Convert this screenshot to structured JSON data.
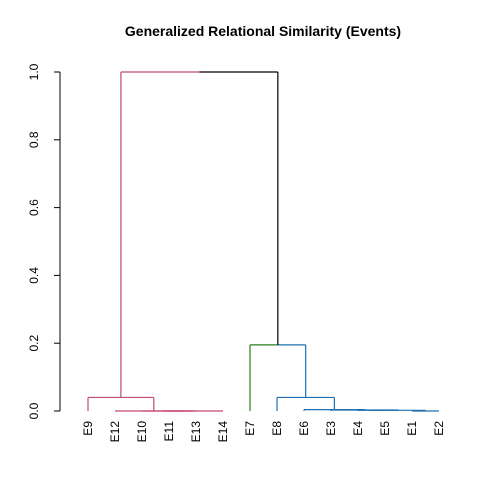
{
  "chart_data": {
    "type": "dendrogram",
    "title": "Generalized Relational Similarity (Events)",
    "xlabel": "",
    "ylabel": "",
    "ylim": [
      0,
      1
    ],
    "yticks": [
      "0.0",
      "0.2",
      "0.4",
      "0.6",
      "0.8",
      "1.0"
    ],
    "ytick_values": [
      0,
      0.2,
      0.4,
      0.6,
      0.8,
      1.0
    ],
    "leaves": [
      "E9",
      "E12",
      "E10",
      "E11",
      "E13",
      "E14",
      "E7",
      "E8",
      "E6",
      "E3",
      "E4",
      "E5",
      "E1",
      "E2"
    ],
    "colors": {
      "cluster1": "#c2477a",
      "cluster2": "#2e7d1f",
      "cluster3": "#1f6fb0",
      "root": "#000000"
    },
    "merges": [
      {
        "a": "E11",
        "b": "E13",
        "height": 0.0,
        "color": "cluster1"
      },
      {
        "a": "E10",
        "b": "E11+E13",
        "height": 0.0,
        "color": "cluster1"
      },
      {
        "a": "E10+E11+E13",
        "b": "E14",
        "height": 0.0,
        "color": "cluster1"
      },
      {
        "a": "E12",
        "b": "E10+E11+E13+E14",
        "height": 0.0,
        "color": "cluster1"
      },
      {
        "a": "E9",
        "b": "E12+E10+E11+E13+E14",
        "height": 0.04,
        "color": "cluster1"
      },
      {
        "a": "E1",
        "b": "E2",
        "height": 0.0,
        "color": "cluster3"
      },
      {
        "a": "E4",
        "b": "E5",
        "height": 0.002,
        "color": "cluster3"
      },
      {
        "a": "E4+E5",
        "b": "E1+E2",
        "height": 0.002,
        "color": "cluster3"
      },
      {
        "a": "E3",
        "b": "E4+E5+E1+E2",
        "height": 0.003,
        "color": "cluster3"
      },
      {
        "a": "E6",
        "b": "E3+E4+E5+E1+E2",
        "height": 0.004,
        "color": "cluster3"
      },
      {
        "a": "E8",
        "b": "E6+E3+E4+E5+E1+E2",
        "height": 0.04,
        "color": "cluster3"
      },
      {
        "a": "E7",
        "b": "E8+E6+E3+E4+E5+E1+E2",
        "height": 0.195,
        "color": "cluster3",
        "left_color": "cluster2"
      },
      {
        "a": "cluster1-root",
        "b": "cluster23-root",
        "height": 1.0,
        "color": "root",
        "left_color": "cluster1"
      }
    ]
  }
}
